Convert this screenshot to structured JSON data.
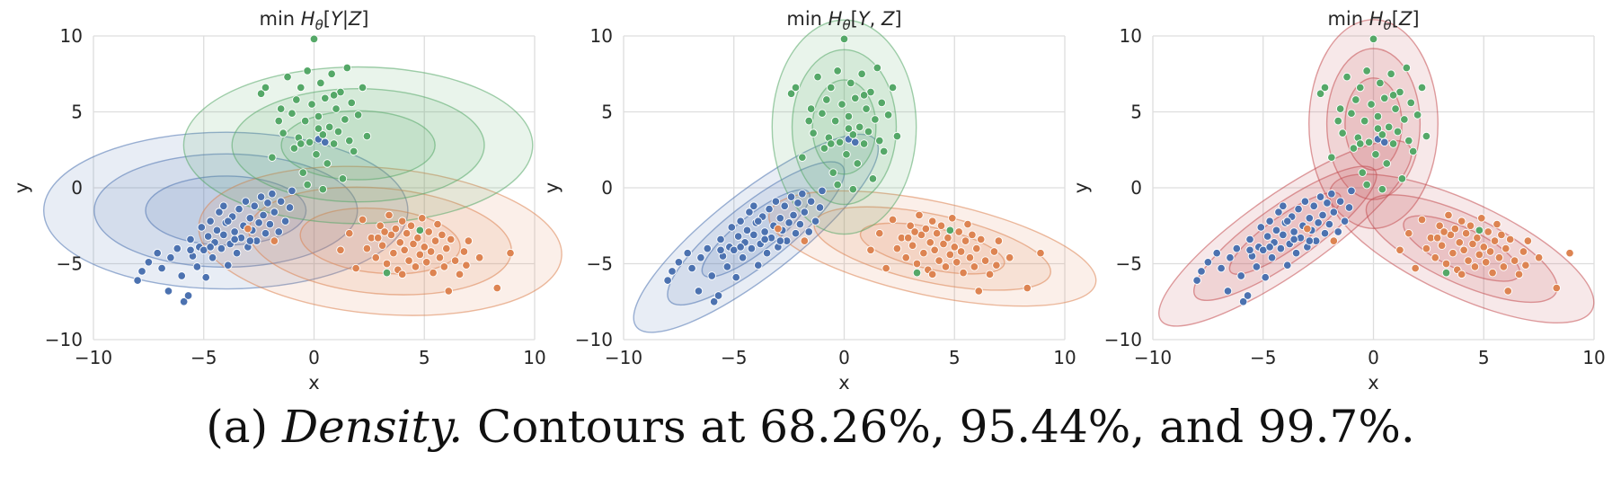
{
  "caption": {
    "prefix": "(a) ",
    "emphasis": "Density.",
    "rest": " Contours at 68.26%, 95.44%, and 99.7%."
  },
  "colors": {
    "blue": "#4c72b0",
    "orange": "#dd8452",
    "green": "#55a868",
    "red": "#c44e52",
    "grid": "#dddddd",
    "face": "#ffffff"
  },
  "chart_data": [
    {
      "type": "scatter",
      "title": "min H_θ[Y|Z]",
      "xlabel": "x",
      "ylabel": "y",
      "xlim": [
        -10,
        10
      ],
      "ylim": [
        -10,
        10
      ],
      "xticks": [
        -10,
        -5,
        0,
        5,
        10
      ],
      "yticks": [
        -10,
        -5,
        0,
        5,
        10
      ],
      "grid": true,
      "contour_levels": [
        "68.26%",
        "95.44%",
        "99.7%"
      ],
      "contours": [
        {
          "color": "blue",
          "mean": [
            -4.0,
            -1.5
          ],
          "sigma": [
            2.4,
            1.5
          ],
          "angle_deg": 0
        },
        {
          "color": "orange",
          "mean": [
            3.0,
            -3.5
          ],
          "sigma": [
            2.4,
            1.4
          ],
          "angle_deg": -5
        },
        {
          "color": "green",
          "mean": [
            2.0,
            2.8
          ],
          "sigma": [
            2.3,
            1.5
          ],
          "angle_deg": 0
        }
      ]
    },
    {
      "type": "scatter",
      "title": "min H_θ[Y, Z]",
      "xlabel": "x",
      "ylabel": "y",
      "xlim": [
        -10,
        10
      ],
      "ylim": [
        -10,
        10
      ],
      "xticks": [
        -10,
        -5,
        0,
        5,
        10
      ],
      "yticks": [
        -10,
        -5,
        0,
        5,
        10
      ],
      "grid": true,
      "contour_levels": [
        "68.26%",
        "95.44%",
        "99.7%"
      ],
      "contours": [
        {
          "color": "blue",
          "mean": [
            -4.0,
            -3.0
          ],
          "sigma": [
            2.0,
            0.8
          ],
          "angle_deg": 38
        },
        {
          "color": "orange",
          "mean": [
            4.0,
            -4.0
          ],
          "sigma": [
            2.2,
            0.9
          ],
          "angle_deg": -12
        },
        {
          "color": "green",
          "mean": [
            0.0,
            4.0
          ],
          "sigma": [
            0.95,
            2.05
          ],
          "angle_deg": 0
        }
      ]
    },
    {
      "type": "scatter",
      "title": "min H_θ[Z]",
      "xlabel": "x",
      "ylabel": "y",
      "xlim": [
        -10,
        10
      ],
      "ylim": [
        -10,
        10
      ],
      "xticks": [
        -10,
        -5,
        0,
        5,
        10
      ],
      "yticks": [
        -10,
        -5,
        0,
        5,
        10
      ],
      "grid": true,
      "contour_levels": [
        "68.26%",
        "95.44%",
        "99.7%"
      ],
      "contours": [
        {
          "color": "red",
          "mean": [
            -4.0,
            -3.0
          ],
          "sigma": [
            2.0,
            0.75
          ],
          "angle_deg": 35
        },
        {
          "color": "red",
          "mean": [
            4.0,
            -4.0
          ],
          "sigma": [
            1.9,
            0.9
          ],
          "angle_deg": -25
        },
        {
          "color": "red",
          "mean": [
            0.0,
            4.2
          ],
          "sigma": [
            0.85,
            2.0
          ],
          "angle_deg": 0
        }
      ]
    }
  ],
  "points": {
    "blue": [
      [
        -8.0,
        -6.1
      ],
      [
        -7.8,
        -5.5
      ],
      [
        -7.5,
        -4.9
      ],
      [
        -7.1,
        -4.3
      ],
      [
        -6.9,
        -5.3
      ],
      [
        -6.6,
        -6.8
      ],
      [
        -6.5,
        -4.6
      ],
      [
        -6.2,
        -4.0
      ],
      [
        -6.0,
        -5.8
      ],
      [
        -5.9,
        -7.5
      ],
      [
        -5.7,
        -7.1
      ],
      [
        -5.6,
        -3.4
      ],
      [
        -5.5,
        -4.5
      ],
      [
        -5.3,
        -5.2
      ],
      [
        -5.2,
        -3.9
      ],
      [
        -5.1,
        -2.6
      ],
      [
        -5.0,
        -4.1
      ],
      [
        -4.9,
        -5.9
      ],
      [
        -4.8,
        -3.2
      ],
      [
        -4.7,
        -2.2
      ],
      [
        -4.6,
        -4.6
      ],
      [
        -4.5,
        -3.6
      ],
      [
        -4.4,
        -2.8
      ],
      [
        -4.3,
        -1.6
      ],
      [
        -4.2,
        -4.0
      ],
      [
        -4.1,
        -3.1
      ],
      [
        -4.0,
        -2.3
      ],
      [
        -3.9,
        -5.1
      ],
      [
        -3.8,
        -3.7
      ],
      [
        -3.7,
        -1.9
      ],
      [
        -3.6,
        -2.9
      ],
      [
        -3.5,
        -4.3
      ],
      [
        -3.4,
        -1.4
      ],
      [
        -3.3,
        -3.3
      ],
      [
        -3.2,
        -2.5
      ],
      [
        -3.1,
        -0.9
      ],
      [
        -3.0,
        -3.9
      ],
      [
        -2.9,
        -2.0
      ],
      [
        -2.8,
        -2.8
      ],
      [
        -2.7,
        -1.2
      ],
      [
        -2.6,
        -3.5
      ],
      [
        -2.5,
        -2.3
      ],
      [
        -2.4,
        -0.6
      ],
      [
        -2.3,
        -1.8
      ],
      [
        -2.2,
        -3.0
      ],
      [
        -2.1,
        -1.0
      ],
      [
        -2.0,
        -2.4
      ],
      [
        -1.9,
        -0.4
      ],
      [
        -1.8,
        -1.6
      ],
      [
        -1.6,
        -2.9
      ],
      [
        -1.5,
        -0.9
      ],
      [
        -1.3,
        -2.2
      ],
      [
        -1.1,
        -1.3
      ],
      [
        -1.0,
        -0.2
      ],
      [
        -3.6,
        -3.4
      ],
      [
        -4.7,
        -3.9
      ],
      [
        -3.9,
        -2.2
      ],
      [
        -5.6,
        -4.1
      ],
      [
        -2.9,
        -3.5
      ],
      [
        -4.1,
        -1.2
      ],
      [
        0.2,
        3.2
      ],
      [
        0.5,
        3.0
      ]
    ],
    "orange": [
      [
        1.2,
        -4.1
      ],
      [
        1.6,
        -3.0
      ],
      [
        1.9,
        -5.3
      ],
      [
        2.2,
        -2.1
      ],
      [
        2.4,
        -4.0
      ],
      [
        2.6,
        -3.3
      ],
      [
        2.8,
        -4.6
      ],
      [
        3.0,
        -2.5
      ],
      [
        3.1,
        -3.8
      ],
      [
        3.3,
        -5.0
      ],
      [
        3.4,
        -1.8
      ],
      [
        3.5,
        -3.1
      ],
      [
        3.6,
        -4.3
      ],
      [
        3.7,
        -2.7
      ],
      [
        3.8,
        -5.4
      ],
      [
        3.9,
        -3.6
      ],
      [
        4.0,
        -2.2
      ],
      [
        4.1,
        -4.1
      ],
      [
        4.2,
        -3.0
      ],
      [
        4.3,
        -4.8
      ],
      [
        4.4,
        -2.5
      ],
      [
        4.5,
        -3.7
      ],
      [
        4.6,
        -5.2
      ],
      [
        4.7,
        -3.3
      ],
      [
        4.8,
        -4.4
      ],
      [
        4.9,
        -2.0
      ],
      [
        5.0,
        -3.9
      ],
      [
        5.1,
        -4.9
      ],
      [
        5.2,
        -2.9
      ],
      [
        5.3,
        -4.2
      ],
      [
        5.4,
        -5.6
      ],
      [
        5.5,
        -3.5
      ],
      [
        5.6,
        -2.4
      ],
      [
        5.7,
        -4.6
      ],
      [
        5.8,
        -3.1
      ],
      [
        5.9,
        -5.2
      ],
      [
        6.0,
        -4.0
      ],
      [
        6.1,
        -6.8
      ],
      [
        6.2,
        -3.4
      ],
      [
        6.4,
        -4.8
      ],
      [
        6.6,
        -5.7
      ],
      [
        6.8,
        -4.2
      ],
      [
        6.9,
        -5.1
      ],
      [
        7.0,
        -3.5
      ],
      [
        7.5,
        -4.6
      ],
      [
        8.3,
        -6.6
      ],
      [
        8.9,
        -4.3
      ],
      [
        3.2,
        -2.9
      ],
      [
        4.0,
        -5.7
      ],
      [
        2.9,
        -3.3
      ],
      [
        -3.0,
        -2.7
      ],
      [
        -1.8,
        -3.5
      ]
    ],
    "green": [
      [
        -2.4,
        6.2
      ],
      [
        -2.2,
        6.6
      ],
      [
        -1.9,
        2.0
      ],
      [
        -1.6,
        4.4
      ],
      [
        -1.4,
        3.6
      ],
      [
        -1.2,
        7.3
      ],
      [
        -1.0,
        4.9
      ],
      [
        -0.9,
        2.6
      ],
      [
        -0.8,
        5.8
      ],
      [
        -0.7,
        3.3
      ],
      [
        -0.6,
        6.6
      ],
      [
        -0.5,
        1.0
      ],
      [
        -0.4,
        4.4
      ],
      [
        -0.3,
        7.7
      ],
      [
        -0.2,
        3.0
      ],
      [
        -0.1,
        5.5
      ],
      [
        0.0,
        9.8
      ],
      [
        0.1,
        2.2
      ],
      [
        0.2,
        4.7
      ],
      [
        0.3,
        6.9
      ],
      [
        0.4,
        3.5
      ],
      [
        0.5,
        5.9
      ],
      [
        0.6,
        1.6
      ],
      [
        0.7,
        4.0
      ],
      [
        0.8,
        7.5
      ],
      [
        0.9,
        2.9
      ],
      [
        1.0,
        5.2
      ],
      [
        1.1,
        3.7
      ],
      [
        1.2,
        6.3
      ],
      [
        1.3,
        0.6
      ],
      [
        1.4,
        4.5
      ],
      [
        1.5,
        7.9
      ],
      [
        1.6,
        3.1
      ],
      [
        1.7,
        5.6
      ],
      [
        1.8,
        2.4
      ],
      [
        2.0,
        4.8
      ],
      [
        2.2,
        6.6
      ],
      [
        2.4,
        3.4
      ],
      [
        -0.3,
        0.2
      ],
      [
        0.4,
        -0.1
      ],
      [
        4.8,
        -2.8
      ],
      [
        3.3,
        -5.6
      ],
      [
        -0.6,
        2.9
      ],
      [
        0.9,
        6.1
      ],
      [
        -1.5,
        5.2
      ],
      [
        0.2,
        3.9
      ]
    ]
  }
}
